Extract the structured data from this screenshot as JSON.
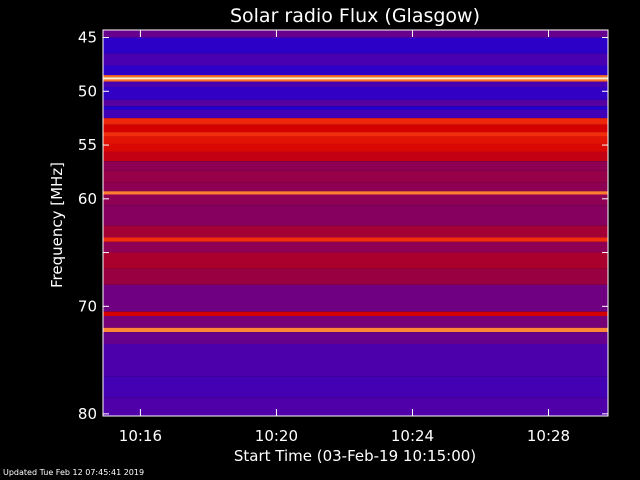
{
  "chart_data": {
    "type": "heatmap",
    "title": "Solar radio Flux (Glasgow)",
    "xlabel": "Start Time (03-Feb-19 10:15:00)",
    "ylabel": "Frequency [MHz]",
    "x_ticks": [
      "10:16",
      "10:20",
      "10:24",
      "10:28"
    ],
    "x_tick_minutes": [
      1,
      5,
      9,
      13
    ],
    "x_range_minutes": [
      -0.1,
      14.75
    ],
    "y_ticks": [
      45,
      50,
      55,
      60,
      65,
      70,
      80
    ],
    "y_tick_labels": [
      "45",
      "50",
      "55",
      "60",
      "",
      "70",
      "80"
    ],
    "y_range": [
      44.3,
      80.2
    ],
    "colormap": [
      "#1a00d8",
      "#5a00a0",
      "#9a0040",
      "#d40000",
      "#ff4010",
      "#ff9a40",
      "#fff0c8"
    ],
    "frequency_bands": [
      {
        "f0": 44.3,
        "f1": 45.0,
        "level": 0.2
      },
      {
        "f0": 45.0,
        "f1": 46.5,
        "level": 0.05
      },
      {
        "f0": 46.5,
        "f1": 47.6,
        "level": 0.12
      },
      {
        "f0": 47.6,
        "f1": 48.5,
        "level": 0.05
      },
      {
        "f0": 48.5,
        "f1": 48.7,
        "level": 0.75
      },
      {
        "f0": 48.7,
        "f1": 48.9,
        "level": 1.0
      },
      {
        "f0": 48.9,
        "f1": 49.1,
        "level": 0.75
      },
      {
        "f0": 49.1,
        "f1": 49.6,
        "level": 0.12
      },
      {
        "f0": 49.6,
        "f1": 50.8,
        "level": 0.06
      },
      {
        "f0": 50.8,
        "f1": 51.4,
        "level": 0.16
      },
      {
        "f0": 51.4,
        "f1": 51.7,
        "level": 0.02
      },
      {
        "f0": 51.7,
        "f1": 52.5,
        "level": 0.1
      },
      {
        "f0": 52.5,
        "f1": 53.1,
        "level": 0.6
      },
      {
        "f0": 53.1,
        "f1": 53.8,
        "level": 0.5
      },
      {
        "f0": 53.8,
        "f1": 54.2,
        "level": 0.62
      },
      {
        "f0": 54.2,
        "f1": 54.9,
        "level": 0.55
      },
      {
        "f0": 54.9,
        "f1": 55.6,
        "level": 0.52
      },
      {
        "f0": 55.6,
        "f1": 56.5,
        "level": 0.45
      },
      {
        "f0": 56.5,
        "f1": 57.4,
        "level": 0.3
      },
      {
        "f0": 57.4,
        "f1": 58.5,
        "level": 0.32
      },
      {
        "f0": 58.5,
        "f1": 59.3,
        "level": 0.3
      },
      {
        "f0": 59.3,
        "f1": 59.6,
        "level": 0.78
      },
      {
        "f0": 59.6,
        "f1": 60.6,
        "level": 0.3
      },
      {
        "f0": 60.6,
        "f1": 62.5,
        "level": 0.28
      },
      {
        "f0": 62.5,
        "f1": 63.6,
        "level": 0.36
      },
      {
        "f0": 63.6,
        "f1": 64.0,
        "level": 0.62
      },
      {
        "f0": 64.0,
        "f1": 65.0,
        "level": 0.3
      },
      {
        "f0": 65.0,
        "f1": 66.5,
        "level": 0.38
      },
      {
        "f0": 66.5,
        "f1": 68.0,
        "level": 0.33
      },
      {
        "f0": 68.0,
        "f1": 70.5,
        "level": 0.22
      },
      {
        "f0": 70.5,
        "f1": 70.9,
        "level": 0.5
      },
      {
        "f0": 70.9,
        "f1": 72.0,
        "level": 0.24
      },
      {
        "f0": 72.0,
        "f1": 72.4,
        "level": 0.8
      },
      {
        "f0": 72.4,
        "f1": 73.5,
        "level": 0.2
      },
      {
        "f0": 73.5,
        "f1": 76.5,
        "level": 0.13
      },
      {
        "f0": 76.5,
        "f1": 78.5,
        "level": 0.11
      },
      {
        "f0": 78.5,
        "f1": 80.2,
        "level": 0.14
      }
    ]
  },
  "footer": "Updated Tue Feb 12 07:45:41 2019"
}
